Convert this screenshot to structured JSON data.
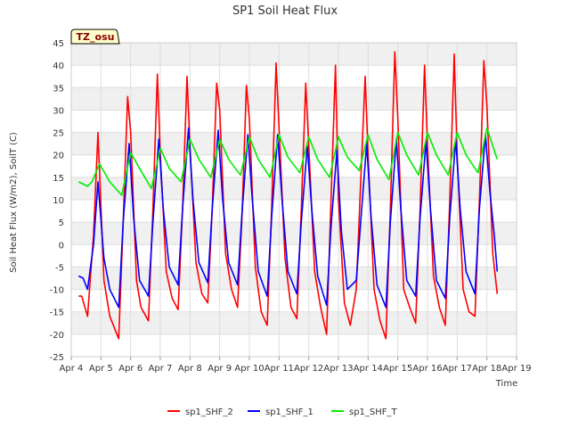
{
  "colors": {
    "sp1_SHF_2": "#ff0000",
    "sp1_SHF_1": "#0000ff",
    "sp1_SHF_T": "#00ee00",
    "band": "#f0f0f0",
    "grid": "#dddddd"
  },
  "badge": {
    "text": "TZ_osu"
  },
  "chart_data": {
    "type": "line",
    "title": "SP1 Soil Heat Flux",
    "xlabel": "Time",
    "ylabel": "Soil Heat Flux (W/m2), SoilT (C)",
    "xlim": [
      4,
      19
    ],
    "ylim": [
      -25,
      45
    ],
    "x_ticks": [
      {
        "value": 4,
        "label": "Apr 4"
      },
      {
        "value": 5,
        "label": "Apr 5"
      },
      {
        "value": 6,
        "label": "Apr 6"
      },
      {
        "value": 7,
        "label": "Apr 7"
      },
      {
        "value": 8,
        "label": "Apr 8"
      },
      {
        "value": 9,
        "label": "Apr 9"
      },
      {
        "value": 10,
        "label": "Apr 10"
      },
      {
        "value": 11,
        "label": "Apr 11"
      },
      {
        "value": 12,
        "label": "Apr 12"
      },
      {
        "value": 13,
        "label": "Apr 13"
      },
      {
        "value": 14,
        "label": "Apr 14"
      },
      {
        "value": 15,
        "label": "Apr 15"
      },
      {
        "value": 16,
        "label": "Apr 16"
      },
      {
        "value": 17,
        "label": "Apr 17"
      },
      {
        "value": 18,
        "label": "Apr 18"
      },
      {
        "value": 19,
        "label": "Apr 19"
      }
    ],
    "y_ticks": [
      -25,
      -20,
      -15,
      -10,
      -5,
      0,
      5,
      10,
      15,
      20,
      25,
      30,
      35,
      40,
      45
    ],
    "legend_position": "bottom-center",
    "series": [
      {
        "name": "sp1_SHF_2",
        "color_key": "sp1_SHF_2",
        "x": [
          4.25,
          4.35,
          4.55,
          4.75,
          4.9,
          5.1,
          5.3,
          5.6,
          5.75,
          5.9,
          6.0,
          6.2,
          6.35,
          6.6,
          6.75,
          6.9,
          7.0,
          7.2,
          7.4,
          7.6,
          7.75,
          7.9,
          8.0,
          8.2,
          8.4,
          8.6,
          8.75,
          8.9,
          9.0,
          9.2,
          9.4,
          9.6,
          9.75,
          9.9,
          10.0,
          10.2,
          10.4,
          10.6,
          10.75,
          10.9,
          11.0,
          11.2,
          11.4,
          11.6,
          11.75,
          11.9,
          12.0,
          12.2,
          12.4,
          12.6,
          12.75,
          12.9,
          13.0,
          13.2,
          13.4,
          13.6,
          13.75,
          13.9,
          14.0,
          14.2,
          14.4,
          14.6,
          14.75,
          14.9,
          15.0,
          15.2,
          15.4,
          15.6,
          15.75,
          15.9,
          16.0,
          16.2,
          16.4,
          16.6,
          16.75,
          16.9,
          17.0,
          17.2,
          17.4,
          17.6,
          17.75,
          17.9,
          18.0,
          18.2,
          18.35
        ],
        "y": [
          -11.5,
          -11.5,
          -16,
          2,
          25,
          -8,
          -16,
          -21,
          5,
          33,
          25,
          -8,
          -14,
          -17,
          8,
          38,
          20,
          -6,
          -12,
          -14.5,
          8,
          37.5,
          22,
          -4,
          -11,
          -13,
          8,
          36,
          30,
          -2,
          -10,
          -14,
          6,
          35.5,
          28,
          -5,
          -15,
          -18,
          8,
          40.5,
          26,
          -3,
          -14,
          -16.5,
          8,
          36,
          22,
          -6,
          -14,
          -20,
          10,
          40,
          10,
          -13,
          -18,
          -10,
          14,
          37.5,
          20,
          -10,
          -17,
          -21,
          8,
          43,
          28,
          -10,
          -14,
          -17.5,
          8,
          40,
          22,
          -7,
          -14,
          -18,
          10,
          42.5,
          20,
          -10,
          -15,
          -16,
          10,
          41,
          31,
          -2,
          -11
        ]
      },
      {
        "name": "sp1_SHF_1",
        "color_key": "sp1_SHF_1",
        "x": [
          4.25,
          4.4,
          4.55,
          4.75,
          4.9,
          5.1,
          5.3,
          5.6,
          5.75,
          5.95,
          6.1,
          6.3,
          6.6,
          6.75,
          6.95,
          7.1,
          7.3,
          7.6,
          7.75,
          7.95,
          8.1,
          8.3,
          8.6,
          8.75,
          8.95,
          9.1,
          9.3,
          9.6,
          9.75,
          9.95,
          10.1,
          10.3,
          10.6,
          10.75,
          10.95,
          11.1,
          11.3,
          11.6,
          11.75,
          11.95,
          12.1,
          12.3,
          12.6,
          12.75,
          12.95,
          13.1,
          13.3,
          13.6,
          13.75,
          13.95,
          14.1,
          14.3,
          14.6,
          14.75,
          14.95,
          15.1,
          15.3,
          15.6,
          15.75,
          15.95,
          16.1,
          16.3,
          16.6,
          16.75,
          16.95,
          17.1,
          17.3,
          17.6,
          17.75,
          17.95,
          18.1,
          18.25,
          18.35
        ],
        "y": [
          -7,
          -7.5,
          -10,
          0,
          14,
          -3,
          -10,
          -14,
          5,
          22.5,
          6,
          -8,
          -11.5,
          5,
          23.5,
          8,
          -5,
          -9,
          8,
          26,
          10,
          -4,
          -8.5,
          8,
          25.5,
          10,
          -4,
          -9,
          7,
          24.5,
          10,
          -6,
          -11.5,
          6,
          24.5,
          10,
          -6,
          -11,
          5,
          22,
          8,
          -7,
          -13.5,
          4,
          21,
          3,
          -10,
          -8,
          5,
          22.5,
          6,
          -9,
          -14,
          5,
          23.5,
          8,
          -8,
          -11.5,
          6,
          23,
          8,
          -8,
          -12,
          6,
          23.5,
          8,
          -6,
          -11,
          8,
          24.5,
          12,
          2,
          -6
        ]
      },
      {
        "name": "sp1_SHF_T",
        "color_key": "sp1_SHF_T",
        "x": [
          4.25,
          4.4,
          4.55,
          4.7,
          4.95,
          5.3,
          5.7,
          6.0,
          6.3,
          6.7,
          7.0,
          7.3,
          7.7,
          8.0,
          8.3,
          8.7,
          9.0,
          9.3,
          9.7,
          10.0,
          10.3,
          10.7,
          11.0,
          11.3,
          11.7,
          12.0,
          12.3,
          12.7,
          13.0,
          13.3,
          13.7,
          14.0,
          14.3,
          14.7,
          15.0,
          15.3,
          15.7,
          16.0,
          16.3,
          16.7,
          17.0,
          17.3,
          17.7,
          18.0,
          18.35
        ],
        "y": [
          14,
          13.5,
          13,
          14,
          18,
          14,
          11,
          20.5,
          17,
          12.5,
          21.5,
          17,
          14,
          23.5,
          19,
          15,
          23.5,
          19,
          15.5,
          24,
          19,
          15,
          24.5,
          19.5,
          16,
          24,
          19,
          15,
          24,
          19.5,
          16.5,
          24.5,
          19,
          14.5,
          25,
          20,
          15.5,
          25,
          20,
          15.5,
          25,
          20,
          16,
          26,
          19
        ]
      }
    ]
  }
}
